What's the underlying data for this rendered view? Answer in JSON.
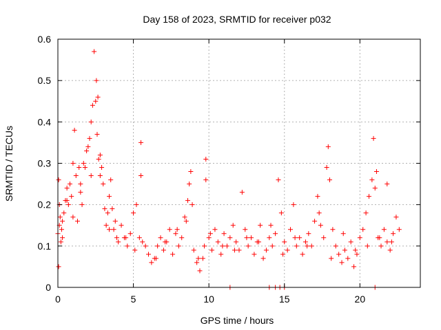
{
  "chart_data": {
    "type": "scatter",
    "title": "Day 158 of 2023, SRMTID for receiver p032",
    "xlabel": "GPS time / hours",
    "ylabel": "SRMTID / TECUs",
    "xlim": [
      0,
      24
    ],
    "ylim": [
      0,
      0.6
    ],
    "xticks": [
      0,
      5,
      10,
      15,
      20
    ],
    "yticks": [
      0,
      0.1,
      0.2,
      0.3,
      0.4,
      0.5,
      0.6
    ],
    "xtick_labels": [
      "0",
      "5",
      "10",
      "15",
      "20"
    ],
    "ytick_labels": [
      "0",
      "0.1",
      "0.2",
      "0.3",
      "0.4",
      "0.5",
      "0.6"
    ],
    "grid": true,
    "marker": "+",
    "color": "#ff0000",
    "series": [
      {
        "name": "SRMTID",
        "x": [
          0.0,
          0.05,
          0.1,
          0.15,
          0.2,
          0.25,
          0.3,
          0.4,
          0.5,
          0.6,
          0.7,
          0.8,
          0.9,
          1.0,
          1.1,
          1.2,
          1.3,
          1.4,
          1.5,
          1.6,
          1.7,
          1.8,
          1.9,
          2.0,
          2.1,
          2.2,
          2.3,
          2.4,
          2.5,
          2.55,
          2.6,
          2.65,
          2.7,
          2.8,
          2.9,
          3.0,
          3.1,
          3.2,
          3.3,
          3.4,
          3.5,
          3.6,
          3.7,
          3.8,
          3.9,
          4.0,
          4.2,
          4.4,
          4.6,
          4.8,
          5.0,
          5.2,
          5.4,
          5.5,
          5.6,
          5.8,
          6.0,
          6.2,
          6.4,
          6.6,
          6.8,
          7.0,
          7.2,
          7.4,
          7.6,
          7.8,
          8.0,
          8.2,
          8.4,
          8.6,
          8.7,
          8.8,
          8.9,
          9.0,
          9.2,
          9.4,
          9.6,
          9.7,
          9.8,
          10.0,
          10.2,
          10.4,
          10.6,
          10.8,
          11.0,
          11.2,
          11.4,
          11.6,
          11.8,
          12.0,
          12.2,
          12.4,
          12.6,
          12.8,
          13.0,
          13.2,
          13.4,
          13.6,
          13.8,
          14.0,
          14.2,
          14.4,
          14.6,
          14.8,
          15.0,
          15.2,
          15.4,
          15.6,
          15.8,
          16.0,
          16.2,
          16.4,
          16.6,
          16.8,
          17.0,
          17.2,
          17.4,
          17.6,
          17.8,
          17.9,
          18.0,
          18.2,
          18.4,
          18.6,
          18.8,
          19.0,
          19.2,
          19.4,
          19.6,
          19.8,
          20.0,
          20.2,
          20.4,
          20.6,
          20.8,
          20.9,
          21.0,
          21.1,
          21.2,
          21.4,
          21.6,
          21.8,
          22.0,
          22.2,
          22.4,
          22.6,
          0.1,
          0.3,
          0.6,
          1.0,
          1.5,
          2.2,
          2.8,
          3.4,
          4.5,
          5.1,
          6.5,
          7.1,
          7.9,
          8.5,
          9.3,
          10.1,
          10.9,
          11.7,
          12.5,
          13.3,
          14.1,
          14.9,
          15.7,
          16.5,
          17.3,
          18.1,
          18.9,
          19.7,
          20.5,
          21.3,
          22.1,
          11.4,
          14.0,
          14.4,
          14.7,
          15.0,
          21.0,
          0.05,
          5.5,
          9.8,
          21.8
        ],
        "y": [
          0.13,
          0.26,
          0.2,
          0.17,
          0.11,
          0.14,
          0.16,
          0.18,
          0.21,
          0.24,
          0.2,
          0.25,
          0.22,
          0.17,
          0.38,
          0.27,
          0.16,
          0.29,
          0.25,
          0.2,
          0.3,
          0.29,
          0.33,
          0.34,
          0.36,
          0.4,
          0.44,
          0.57,
          0.45,
          0.5,
          0.37,
          0.46,
          0.31,
          0.27,
          0.29,
          0.25,
          0.19,
          0.15,
          0.18,
          0.22,
          0.26,
          0.19,
          0.14,
          0.16,
          0.12,
          0.11,
          0.15,
          0.12,
          0.1,
          0.13,
          0.18,
          0.2,
          0.12,
          0.27,
          0.11,
          0.1,
          0.08,
          0.06,
          0.07,
          0.1,
          0.12,
          0.09,
          0.11,
          0.14,
          0.08,
          0.13,
          0.1,
          0.12,
          0.17,
          0.21,
          0.25,
          0.28,
          0.2,
          0.09,
          0.06,
          0.04,
          0.07,
          0.1,
          0.31,
          0.12,
          0.09,
          0.14,
          0.11,
          0.08,
          0.13,
          0.1,
          0.12,
          0.15,
          0.11,
          0.09,
          0.23,
          0.14,
          0.1,
          0.12,
          0.08,
          0.11,
          0.15,
          0.07,
          0.09,
          0.12,
          0.1,
          0.13,
          0.26,
          0.18,
          0.11,
          0.09,
          0.14,
          0.2,
          0.1,
          0.12,
          0.08,
          0.11,
          0.13,
          0.1,
          0.16,
          0.22,
          0.15,
          0.12,
          0.29,
          0.34,
          0.26,
          0.14,
          0.1,
          0.08,
          0.06,
          0.09,
          0.07,
          0.11,
          0.05,
          0.08,
          0.12,
          0.14,
          0.18,
          0.22,
          0.26,
          0.36,
          0.24,
          0.28,
          0.12,
          0.1,
          0.14,
          0.11,
          0.09,
          0.13,
          0.17,
          0.14,
          0.15,
          0.12,
          0.21,
          0.3,
          0.23,
          0.27,
          0.32,
          0.14,
          0.12,
          0.09,
          0.07,
          0.11,
          0.14,
          0.16,
          0.07,
          0.13,
          0.1,
          0.09,
          0.12,
          0.11,
          0.15,
          0.08,
          0.12,
          0.1,
          0.18,
          0.07,
          0.13,
          0.09,
          0.1,
          0.12,
          0.11,
          0.0,
          0.0,
          0.0,
          0.0,
          0.0,
          0.0,
          0.05,
          0.35,
          0.26,
          0.25
        ]
      }
    ]
  }
}
